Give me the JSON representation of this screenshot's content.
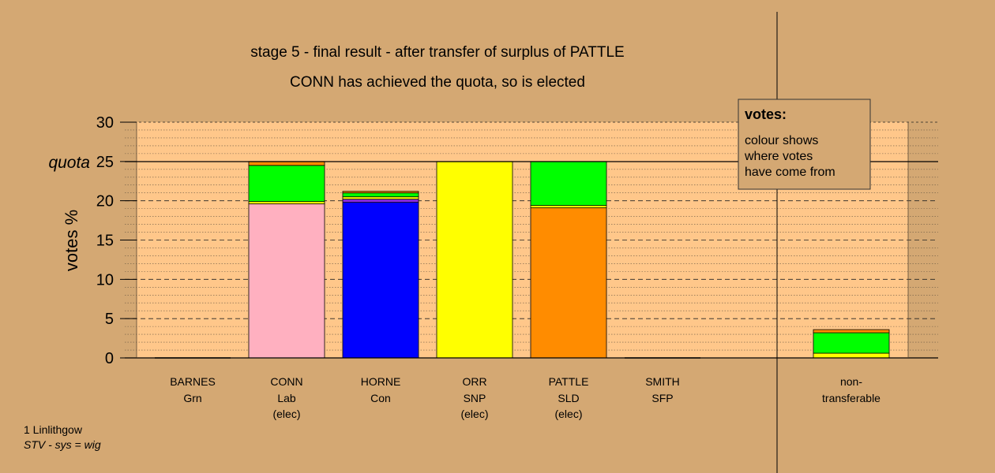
{
  "chart_data": {
    "type": "bar",
    "stacked": true,
    "title": "stage 5 - final result - after transfer of surplus of PATTLE",
    "subtitle": "CONN has achieved the quota, so is elected",
    "ylabel": "votes %",
    "ylim": [
      0,
      30
    ],
    "yticks": [
      0,
      5,
      10,
      15,
      20,
      25,
      30
    ],
    "quota": 25,
    "quota_label": "quota",
    "grid": true,
    "legend_position": "top-right",
    "legend": {
      "title": "votes:",
      "lines": [
        "colour shows",
        "where votes",
        "have come from"
      ]
    },
    "candidates": [
      {
        "name": "BARNES",
        "party": "Grn",
        "status": "",
        "segments": []
      },
      {
        "name": "CONN",
        "party": "Lab",
        "status": "(elec)",
        "segments": [
          {
            "color": "#ffb0c0",
            "value": 19.6
          },
          {
            "color": "#ffff00",
            "value": 0.3
          },
          {
            "color": "#00ff00",
            "value": 4.6
          },
          {
            "color": "#ff8c00",
            "value": 0.5
          }
        ]
      },
      {
        "name": "HORNE",
        "party": "Con",
        "status": "",
        "segments": [
          {
            "color": "#0000ff",
            "value": 19.8
          },
          {
            "color": "#8a2be2",
            "value": 0.4
          },
          {
            "color": "#ffff00",
            "value": 0.3
          },
          {
            "color": "#00ff00",
            "value": 0.5
          },
          {
            "color": "#ff8c00",
            "value": 0.2
          }
        ]
      },
      {
        "name": "ORR",
        "party": "SNP",
        "status": "(elec)",
        "segments": [
          {
            "color": "#ffff00",
            "value": 25.0
          }
        ]
      },
      {
        "name": "PATTLE",
        "party": "SLD",
        "status": "(elec)",
        "segments": [
          {
            "color": "#ff8c00",
            "value": 19.1
          },
          {
            "color": "#ffff00",
            "value": 0.3
          },
          {
            "color": "#00ff00",
            "value": 5.6
          }
        ]
      },
      {
        "name": "SMITH",
        "party": "SFP",
        "status": "",
        "segments": []
      }
    ],
    "nontransferable": {
      "label_lines": [
        "non-",
        "transferable"
      ],
      "segments": [
        {
          "color": "#ffff00",
          "value": 0.6
        },
        {
          "color": "#00ff00",
          "value": 2.6
        },
        {
          "color": "#ff8c00",
          "value": 0.4
        }
      ]
    }
  },
  "footer": {
    "constituency": "1 Linlithgow",
    "system": "STV - sys = wig"
  },
  "colors": {
    "background": "#d4a873",
    "plot_area": "#ffc78a",
    "legend_box": "#d4a873"
  }
}
